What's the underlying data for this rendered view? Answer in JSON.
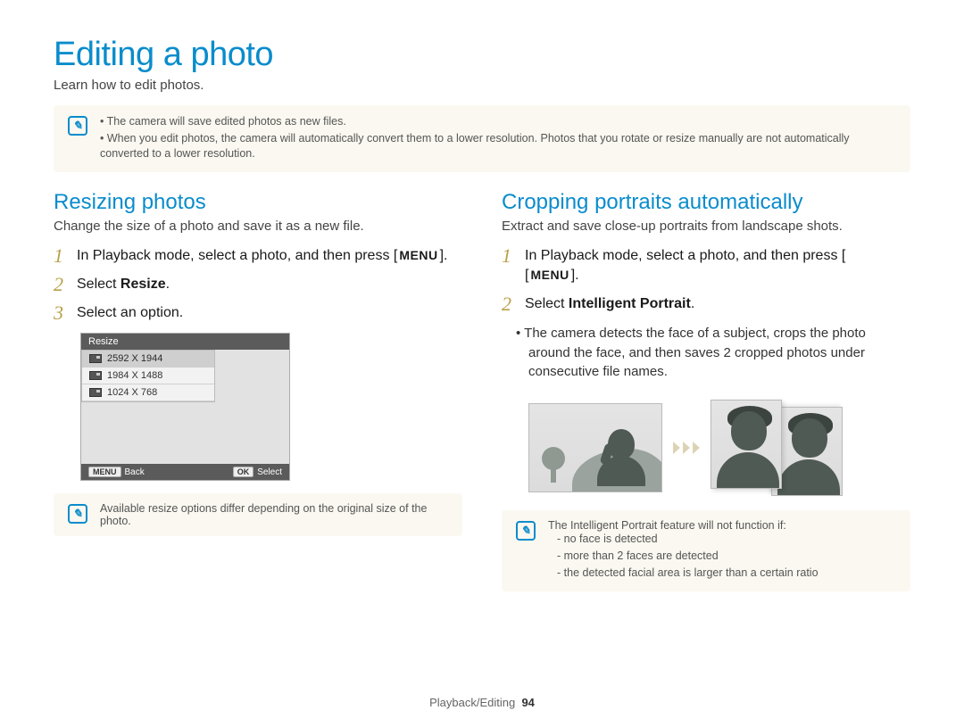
{
  "page": {
    "title": "Editing a photo",
    "intro": "Learn how to edit photos.",
    "footer_section": "Playback/Editing",
    "footer_page": "94"
  },
  "top_note": {
    "bullets": [
      "The camera will save edited photos as new files.",
      "When you edit photos, the camera will automatically convert them to a lower resolution. Photos that you rotate or resize manually are not automatically converted to a lower resolution."
    ]
  },
  "left": {
    "heading": "Resizing photos",
    "sub": "Change the size of a photo and save it as a new file.",
    "steps": {
      "s1a": "In Playback mode, select a photo, and then press [",
      "s1_menu": "MENU",
      "s1b": "].",
      "s2a": "Select ",
      "s2b": "Resize",
      "s2c": ".",
      "s3": "Select an option."
    },
    "lcd": {
      "title": "Resize",
      "opt1": "2592 X 1944",
      "opt2": "1984 X 1488",
      "opt3": "1024 X 768",
      "back_btn": "MENU",
      "back_lbl": "Back",
      "ok_btn": "OK",
      "ok_lbl": "Select"
    },
    "note": "Available resize options differ depending on the original size of the photo."
  },
  "right": {
    "heading": "Cropping portraits automatically",
    "sub": "Extract and save close-up portraits from landscape shots.",
    "steps": {
      "s1a": "In Playback mode, select a photo, and then press [",
      "s1_menu": "MENU",
      "s1b": "].",
      "s2a": "Select ",
      "s2b": "Intelligent Portrait",
      "s2c": ".",
      "s2_detail": "The camera detects the face of a subject, crops the photo around the face, and then saves 2 cropped photos under consecutive file names."
    },
    "note_lead": "The Intelligent Portrait feature will not function if:",
    "note_items": [
      "no face is detected",
      "more than 2 faces are detected",
      "the detected facial area is larger than a certain ratio"
    ]
  }
}
